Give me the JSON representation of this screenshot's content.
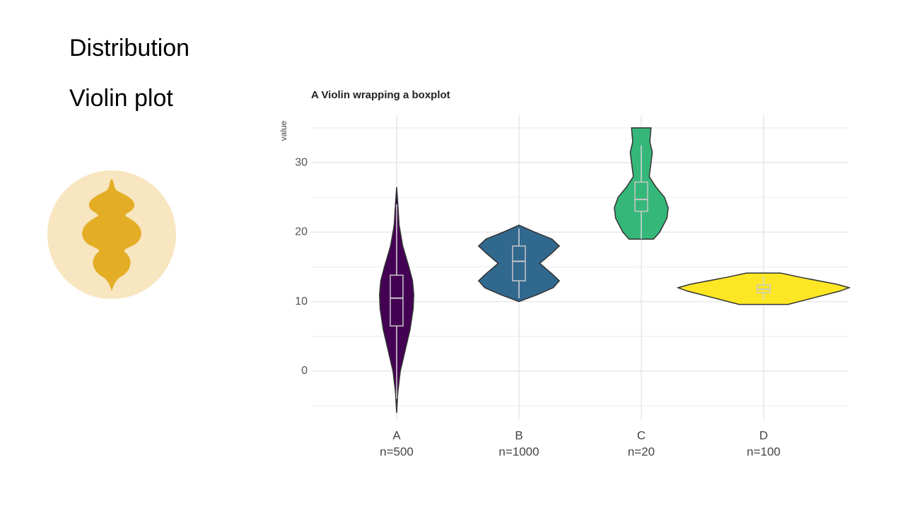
{
  "slide": {
    "heading": "Distribution",
    "subheading": "Violin plot"
  },
  "chart_data": {
    "type": "violin",
    "title": "A Violin wrapping a boxplot",
    "y_label": "value",
    "ylim": [
      -5.5,
      35.5
    ],
    "yticks": [
      0,
      10,
      20,
      30
    ],
    "yminor": [
      -5,
      5,
      15,
      25,
      35
    ],
    "grid": true,
    "series": [
      {
        "name": "A",
        "n_label": "n=500",
        "color": "#440154",
        "violin_y": [
          -6,
          -3,
          0,
          3,
          6,
          9,
          11,
          13,
          15,
          18,
          21,
          24,
          26.5
        ],
        "violin_width": [
          0,
          0.01,
          0.03,
          0.07,
          0.11,
          0.135,
          0.14,
          0.13,
          0.1,
          0.05,
          0.02,
          0.01,
          0
        ],
        "whisker_low": -4,
        "q1": 6.5,
        "median": 10.5,
        "q3": 13.8,
        "whisker_high": 24
      },
      {
        "name": "B",
        "n_label": "n=1000",
        "color": "#31688e",
        "violin_y": [
          10,
          11,
          12,
          13,
          14,
          15.5,
          17,
          18,
          19,
          20,
          21
        ],
        "violin_width": [
          0,
          0.15,
          0.28,
          0.33,
          0.27,
          0.17,
          0.27,
          0.33,
          0.27,
          0.13,
          0
        ],
        "whisker_low": 10.5,
        "q1": 13,
        "median": 15.8,
        "q3": 18,
        "whisker_high": 20.5
      },
      {
        "name": "C",
        "n_label": "n=20",
        "color": "#35b779",
        "violin_y": [
          19,
          20,
          22,
          23.5,
          25,
          26.5,
          28,
          30,
          31.5,
          33,
          35
        ],
        "violin_width": [
          0.1,
          0.15,
          0.21,
          0.22,
          0.19,
          0.12,
          0.065,
          0.08,
          0.09,
          0.07,
          0.08
        ],
        "whisker_low": 19,
        "q1": 23,
        "median": 24.7,
        "q3": 27.2,
        "whisker_high": 32.5
      },
      {
        "name": "D",
        "n_label": "n=100",
        "color": "#fde725",
        "violin_y": [
          9.6,
          10.5,
          11.5,
          12,
          12.5,
          13.5,
          14.1
        ],
        "violin_width": [
          0.2,
          0.4,
          0.62,
          0.7,
          0.6,
          0.3,
          0.14
        ],
        "whisker_low": 10.3,
        "q1": 11.3,
        "median": 11.8,
        "q3": 12.4,
        "whisker_high": 13.6
      }
    ]
  }
}
